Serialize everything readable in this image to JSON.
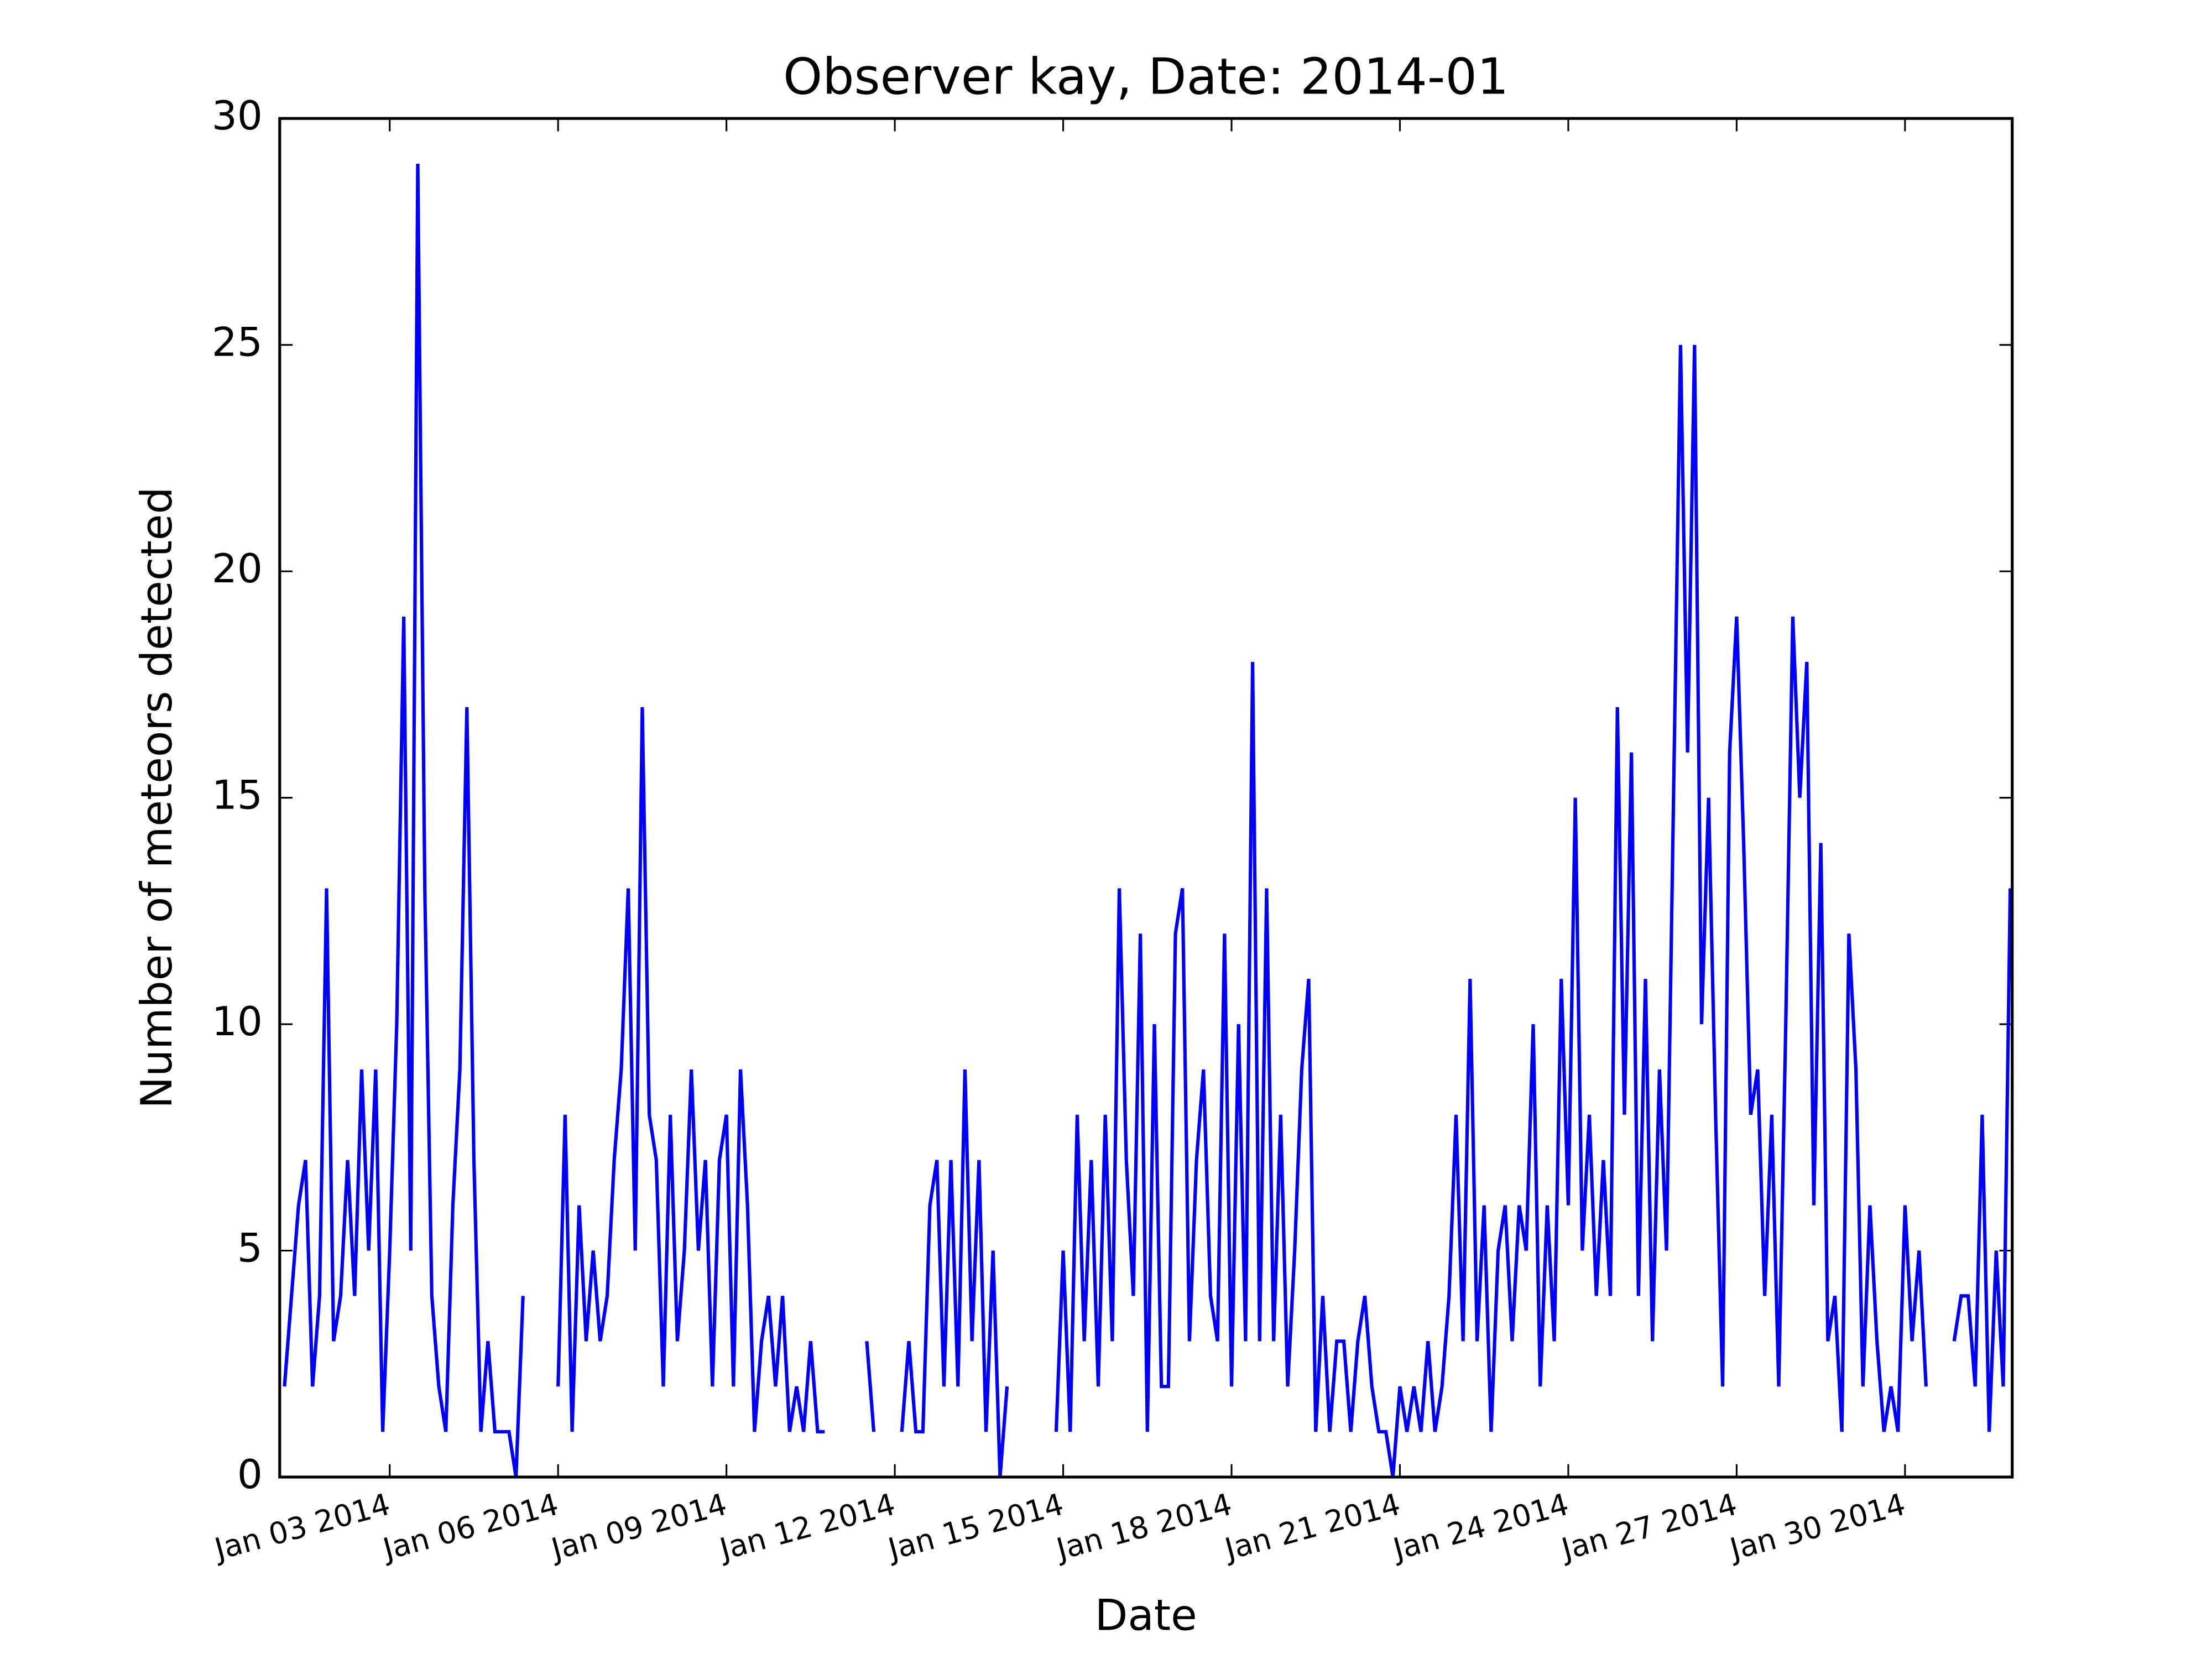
{
  "chart_data": {
    "type": "line",
    "title": "Observer kay, Date: 2014-01",
    "xlabel": "Date",
    "ylabel": "Number of meteors detected",
    "x": [
      1.125,
      1.25,
      1.375,
      1.5,
      1.625,
      1.75,
      1.875,
      2,
      2.125,
      2.25,
      2.375,
      2.5,
      2.625,
      2.75,
      2.875,
      3,
      3.125,
      3.25,
      3.375,
      3.5,
      3.625,
      3.75,
      3.875,
      4,
      4.125,
      4.25,
      4.375,
      4.5,
      4.625,
      4.75,
      4.875,
      5,
      5.125,
      5.25,
      5.375,
      5.5,
      5.625,
      5.75,
      5.875,
      6,
      6.125,
      6.25,
      6.375,
      6.5,
      6.625,
      6.75,
      6.875,
      7,
      7.125,
      7.25,
      7.375,
      7.5,
      7.625,
      7.75,
      7.875,
      8,
      8.125,
      8.25,
      8.375,
      8.5,
      8.625,
      8.75,
      8.875,
      9,
      9.125,
      9.25,
      9.375,
      9.5,
      9.625,
      9.75,
      9.875,
      10,
      10.125,
      10.25,
      10.375,
      10.5,
      10.625,
      10.75,
      10.875,
      11,
      11.125,
      11.25,
      11.375,
      11.5,
      11.625,
      11.75,
      11.875,
      12,
      12.125,
      12.25,
      12.375,
      12.5,
      12.625,
      12.75,
      12.875,
      13,
      13.125,
      13.25,
      13.375,
      13.5,
      13.625,
      13.75,
      13.875,
      14,
      14.125,
      14.25,
      14.375,
      14.5,
      14.625,
      14.75,
      14.875,
      15,
      15.125,
      15.25,
      15.375,
      15.5,
      15.625,
      15.75,
      15.875,
      16,
      16.125,
      16.25,
      16.375,
      16.5,
      16.625,
      16.75,
      16.875,
      17,
      17.125,
      17.25,
      17.375,
      17.5,
      17.625,
      17.75,
      17.875,
      18,
      18.125,
      18.25,
      18.375,
      18.5,
      18.625,
      18.75,
      18.875,
      19,
      19.125,
      19.25,
      19.375,
      19.5,
      19.625,
      19.75,
      19.875,
      20,
      20.125,
      20.25,
      20.375,
      20.5,
      20.625,
      20.75,
      20.875,
      21,
      21.125,
      21.25,
      21.375,
      21.5,
      21.625,
      21.75,
      21.875,
      22,
      22.125,
      22.25,
      22.375,
      22.5,
      22.625,
      22.75,
      22.875,
      23,
      23.125,
      23.25,
      23.375,
      23.5,
      23.625,
      23.75,
      23.875,
      24,
      24.125,
      24.25,
      24.375,
      24.5,
      24.625,
      24.75,
      24.875,
      25,
      25.125,
      25.25,
      25.375,
      25.5,
      25.625,
      25.75,
      25.875,
      26,
      26.125,
      26.25,
      26.375,
      26.5,
      26.625,
      26.75,
      26.875,
      27,
      27.125,
      27.25,
      27.375,
      27.5,
      27.625,
      27.75,
      27.875,
      28,
      28.125,
      28.25,
      28.375,
      28.5,
      28.625,
      28.75,
      28.875,
      29,
      29.125,
      29.25,
      29.375,
      29.5,
      29.625,
      29.75,
      29.875,
      30,
      30.125,
      30.25,
      30.375,
      30.5,
      30.625,
      30.75,
      30.875,
      31,
      31.125,
      31.25,
      31.375,
      31.5,
      31.625,
      31.75,
      31.875
    ],
    "series": [
      {
        "color": "#0000ff",
        "values": [
          2,
          4,
          6,
          7,
          2,
          4,
          13,
          3,
          4,
          7,
          4,
          9,
          5,
          9,
          1,
          5,
          10,
          19,
          5,
          29,
          13,
          4,
          2,
          1,
          6,
          9,
          17,
          7,
          1,
          3,
          1,
          1,
          1,
          0,
          4,
          null,
          null,
          null,
          null,
          2,
          8,
          1,
          6,
          3,
          5,
          3,
          4,
          7,
          9,
          13,
          5,
          17,
          8,
          7,
          2,
          8,
          3,
          5,
          9,
          5,
          7,
          2,
          7,
          8,
          2,
          9,
          6,
          1,
          3,
          4,
          2,
          4,
          1,
          2,
          1,
          3,
          1,
          1,
          null,
          null,
          null,
          null,
          null,
          3,
          1,
          null,
          null,
          null,
          1,
          3,
          1,
          1,
          6,
          7,
          2,
          7,
          2,
          9,
          3,
          7,
          1,
          5,
          0,
          2,
          null,
          null,
          null,
          null,
          null,
          null,
          1,
          5,
          1,
          8,
          3,
          7,
          2,
          8,
          3,
          13,
          7,
          4,
          12,
          1,
          10,
          2,
          2,
          12,
          13,
          3,
          7,
          9,
          4,
          3,
          12,
          2,
          10,
          3,
          18,
          3,
          13,
          3,
          8,
          2,
          5,
          9,
          11,
          1,
          4,
          1,
          3,
          3,
          1,
          3,
          4,
          2,
          1,
          1,
          0,
          2,
          1,
          2,
          1,
          3,
          1,
          2,
          4,
          8,
          3,
          11,
          3,
          6,
          1,
          5,
          6,
          3,
          6,
          5,
          10,
          2,
          6,
          3,
          11,
          6,
          15,
          5,
          8,
          4,
          7,
          4,
          17,
          8,
          16,
          4,
          11,
          3,
          9,
          5,
          15,
          25,
          16,
          25,
          10,
          15,
          8,
          2,
          16,
          19,
          14,
          8,
          9,
          4,
          8,
          2,
          10,
          19,
          15,
          18,
          6,
          14,
          3,
          4,
          1,
          12,
          9,
          2,
          6,
          3,
          1,
          2,
          1,
          6,
          3,
          5,
          2,
          null,
          1,
          null,
          3,
          4,
          4,
          2,
          8,
          1,
          5,
          2,
          13
        ]
      }
    ],
    "xlim": [
      1.04,
      31.91
    ],
    "ylim": [
      0,
      30
    ],
    "xticks": [
      {
        "value": 3,
        "label": "Jan 03 2014"
      },
      {
        "value": 6,
        "label": "Jan 06 2014"
      },
      {
        "value": 9,
        "label": "Jan 09 2014"
      },
      {
        "value": 12,
        "label": "Jan 12 2014"
      },
      {
        "value": 15,
        "label": "Jan 15 2014"
      },
      {
        "value": 18,
        "label": "Jan 18 2014"
      },
      {
        "value": 21,
        "label": "Jan 21 2014"
      },
      {
        "value": 24,
        "label": "Jan 24 2014"
      },
      {
        "value": 27,
        "label": "Jan 27 2014"
      },
      {
        "value": 30,
        "label": "Jan 30 2014"
      }
    ],
    "yticks": [
      0,
      5,
      10,
      15,
      20,
      25,
      30
    ],
    "grid": false
  }
}
